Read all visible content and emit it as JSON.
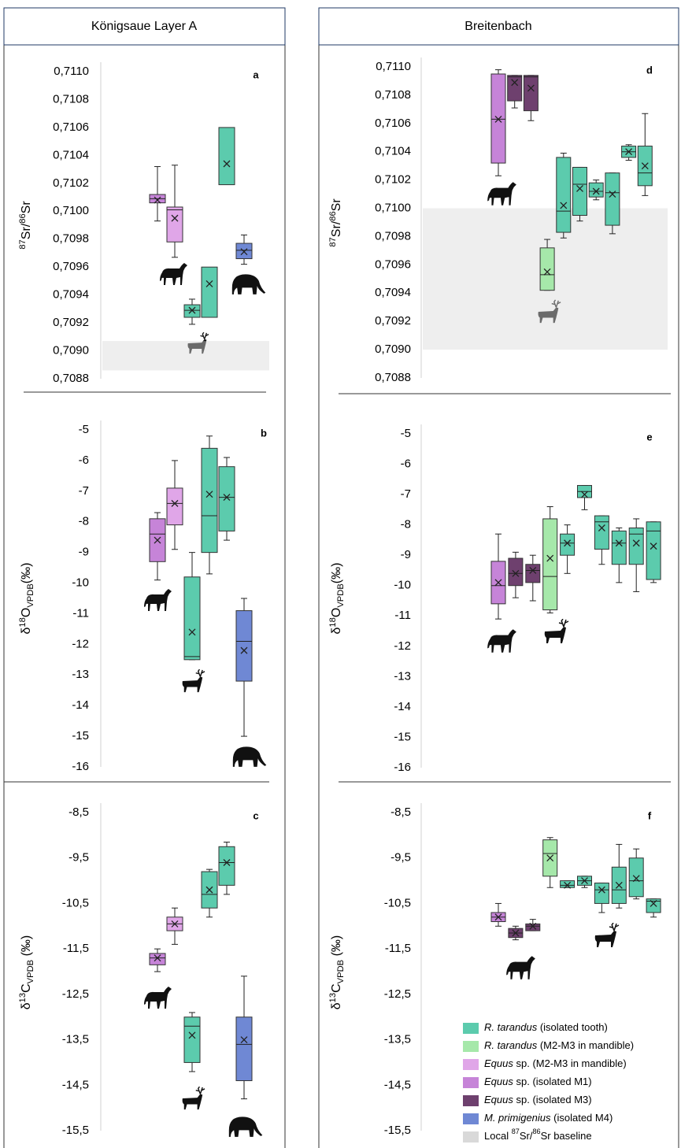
{
  "columns": [
    {
      "header": "Königsaue Layer A"
    },
    {
      "header": "Breitenbach"
    }
  ],
  "legend": [
    {
      "label": [
        {
          "text": "R. tarandus",
          "style": "italic"
        },
        {
          "text": " (isolated tooth)",
          "style": "normal"
        }
      ],
      "color": "#5ccbad"
    },
    {
      "label": [
        {
          "text": "R. tarandus",
          "style": "italic"
        },
        {
          "text": " (M2-M3 in mandible)",
          "style": "normal"
        }
      ],
      "color": "#a6e8aa"
    },
    {
      "label": [
        {
          "text": "Equus",
          "style": "italic"
        },
        {
          "text": " sp. (M2-M3 in mandible)",
          "style": "normal"
        }
      ],
      "color": "#e0a6e8"
    },
    {
      "label": [
        {
          "text": "Equus",
          "style": "italic"
        },
        {
          "text": " sp. (isolated M1)",
          "style": "normal"
        }
      ],
      "color": "#c684d8"
    },
    {
      "label": [
        {
          "text": "Equus",
          "style": "italic"
        },
        {
          "text": " sp. (isolated M3)",
          "style": "normal"
        }
      ],
      "color": "#6e406e"
    },
    {
      "label": [
        {
          "text": "M. primigenius",
          "style": "italic"
        },
        {
          "text": " (isolated M4)",
          "style": "normal"
        }
      ],
      "color": "#6f88d4"
    },
    {
      "label": [
        {
          "text": "Local ",
          "style": "normal"
        },
        {
          "text": "87",
          "style": "sup"
        },
        {
          "text": "Sr/",
          "style": "normal"
        },
        {
          "text": "86",
          "style": "sup"
        },
        {
          "text": "Sr baseline",
          "style": "normal"
        }
      ],
      "color": "#d9d9d9"
    }
  ],
  "chart_data": [
    {
      "type": "box",
      "panel_label": "a",
      "ylabel": [
        {
          "text": "87",
          "style": "sup"
        },
        {
          "text": "Sr/",
          "style": "normal"
        },
        {
          "text": "86",
          "style": "sup"
        },
        {
          "text": "Sr",
          "style": "normal"
        }
      ],
      "ylim": [
        0.7088,
        0.711
      ],
      "yticks": [
        {
          "value": 0.711,
          "label": "0,7110"
        },
        {
          "value": 0.7108,
          "label": "0,7108"
        },
        {
          "value": 0.7106,
          "label": "0,7106"
        },
        {
          "value": 0.7104,
          "label": "0,7104"
        },
        {
          "value": 0.7102,
          "label": "0,7102"
        },
        {
          "value": 0.71,
          "label": "0,7100"
        },
        {
          "value": 0.7098,
          "label": "0,7098"
        },
        {
          "value": 0.7096,
          "label": "0,7096"
        },
        {
          "value": 0.7094,
          "label": "0,7094"
        },
        {
          "value": 0.7092,
          "label": "0,7092"
        },
        {
          "value": 0.709,
          "label": "0,7090"
        },
        {
          "value": 0.7088,
          "label": "0,7088"
        }
      ],
      "band": {
        "group": 6,
        "range": [
          0.70886,
          0.70907
        ]
      },
      "boxes": [
        {
          "group": 3,
          "whisker_low": 0.70993,
          "q1": 0.71006,
          "median": 0.71009,
          "q3": 0.71012,
          "whisker_high": 0.71032,
          "mean": 0.71008
        },
        {
          "group": 2,
          "whisker_low": 0.70967,
          "q1": 0.70978,
          "median": 0.71001,
          "q3": 0.71003,
          "whisker_high": 0.71033,
          "mean": 0.70995
        },
        {
          "group": 0,
          "whisker_low": 0.70919,
          "q1": 0.70924,
          "median": 0.70929,
          "q3": 0.70933,
          "whisker_high": 0.70937,
          "mean": 0.70929
        },
        {
          "group": 0,
          "q1": 0.70924,
          "q3": 0.7096,
          "mean": 0.70948
        },
        {
          "group": 0,
          "q1": 0.71019,
          "q3": 0.7106,
          "mean": 0.71034
        },
        {
          "group": 5,
          "whisker_low": 0.70962,
          "q1": 0.70966,
          "median": 0.70972,
          "q3": 0.70977,
          "whisker_high": 0.70983,
          "mean": 0.70971
        }
      ]
    },
    {
      "type": "box",
      "panel_label": "b",
      "ylabel": [
        {
          "text": "δ",
          "style": "normal"
        },
        {
          "text": "18",
          "style": "sup"
        },
        {
          "text": "O",
          "style": "normal"
        },
        {
          "text": "VPDB",
          "style": "sub"
        },
        {
          "text": "(‰)",
          "style": "normal"
        }
      ],
      "ylim": [
        -16,
        -5
      ],
      "yticks": [
        -5,
        -6,
        -7,
        -8,
        -9,
        -10,
        -11,
        -12,
        -13,
        -14,
        -15,
        -16
      ],
      "boxes": [
        {
          "group": 3,
          "whisker_low": -9.9,
          "q1": -9.3,
          "median": -8.4,
          "q3": -7.9,
          "whisker_high": -7.7,
          "mean": -8.6
        },
        {
          "group": 2,
          "whisker_low": -8.9,
          "q1": -8.1,
          "median": -7.4,
          "q3": -6.9,
          "whisker_high": -6.0,
          "mean": -7.4
        },
        {
          "group": 0,
          "whisker_low": -12.5,
          "q1": -12.5,
          "median": -12.4,
          "q3": -9.8,
          "whisker_high": -9.0,
          "mean": -11.6
        },
        {
          "group": 0,
          "whisker_low": -9.7,
          "q1": -9.0,
          "median": -7.8,
          "q3": -5.6,
          "whisker_high": -5.2,
          "mean": -7.1
        },
        {
          "group": 0,
          "whisker_low": -8.6,
          "q1": -8.3,
          "median": -7.2,
          "q3": -6.2,
          "whisker_high": -5.9,
          "mean": -7.2
        },
        {
          "group": 5,
          "whisker_low": -15.0,
          "q1": -13.2,
          "median": -11.9,
          "q3": -10.9,
          "whisker_high": -10.5,
          "mean": -12.2
        }
      ]
    },
    {
      "type": "box",
      "panel_label": "c",
      "ylabel": [
        {
          "text": "δ",
          "style": "normal"
        },
        {
          "text": "13",
          "style": "sup"
        },
        {
          "text": "C",
          "style": "normal"
        },
        {
          "text": "VPDB",
          "style": "sub"
        },
        {
          "text": " (‰)",
          "style": "normal"
        }
      ],
      "ylim": [
        -15.5,
        -8.5
      ],
      "yticks": [
        {
          "value": -8.5,
          "label": "-8,5"
        },
        {
          "value": -9.5,
          "label": "-9,5"
        },
        {
          "value": -10.5,
          "label": "-10,5"
        },
        {
          "value": -11.5,
          "label": "-11,5"
        },
        {
          "value": -12.5,
          "label": "-12,5"
        },
        {
          "value": -13.5,
          "label": "-13,5"
        },
        {
          "value": -14.5,
          "label": "-14,5"
        },
        {
          "value": -15.5,
          "label": "-15,5"
        }
      ],
      "boxes": [
        {
          "group": 3,
          "whisker_low": -12.0,
          "q1": -11.85,
          "median": -11.7,
          "q3": -11.6,
          "whisker_high": -11.5,
          "mean": -11.7
        },
        {
          "group": 2,
          "whisker_low": -11.4,
          "q1": -11.1,
          "median": -10.95,
          "q3": -10.8,
          "whisker_high": -10.6,
          "mean": -10.95
        },
        {
          "group": 0,
          "whisker_low": -14.2,
          "q1": -14.0,
          "median": -13.2,
          "q3": -13.0,
          "whisker_high": -12.9,
          "mean": -13.4
        },
        {
          "group": 0,
          "whisker_low": -10.8,
          "q1": -10.6,
          "median": -10.3,
          "q3": -9.8,
          "whisker_high": -9.75,
          "mean": -10.2
        },
        {
          "group": 0,
          "whisker_low": -10.3,
          "q1": -10.1,
          "median": -9.6,
          "q3": -9.25,
          "whisker_high": -9.15,
          "mean": -9.6
        },
        {
          "group": 5,
          "whisker_low": -14.8,
          "q1": -14.4,
          "median": -13.6,
          "q3": -13.0,
          "whisker_high": -12.1,
          "mean": -13.5
        }
      ]
    },
    {
      "type": "box",
      "panel_label": "d",
      "ylabel": [
        {
          "text": "87",
          "style": "sup"
        },
        {
          "text": "Sr/",
          "style": "normal"
        },
        {
          "text": "86",
          "style": "sup"
        },
        {
          "text": "Sr",
          "style": "normal"
        }
      ],
      "ylim": [
        0.7088,
        0.711
      ],
      "yticks": [
        {
          "value": 0.711,
          "label": "0,7110"
        },
        {
          "value": 0.7108,
          "label": "0,7108"
        },
        {
          "value": 0.7106,
          "label": "0,7106"
        },
        {
          "value": 0.7104,
          "label": "0,7104"
        },
        {
          "value": 0.7102,
          "label": "0,7102"
        },
        {
          "value": 0.71,
          "label": "0,7100"
        },
        {
          "value": 0.7098,
          "label": "0,7098"
        },
        {
          "value": 0.7096,
          "label": "0,7096"
        },
        {
          "value": 0.7094,
          "label": "0,7094"
        },
        {
          "value": 0.7092,
          "label": "0,7092"
        },
        {
          "value": 0.709,
          "label": "0,7090"
        },
        {
          "value": 0.7088,
          "label": "0,7088"
        }
      ],
      "band": {
        "group": 6,
        "range": [
          0.709,
          0.71
        ]
      },
      "boxes": [
        {
          "group": 3,
          "whisker_low": 0.71023,
          "q1": 0.71032,
          "median": 0.71063,
          "q3": 0.71095,
          "whisker_high": 0.71098,
          "mean": 0.71063
        },
        {
          "group": 4,
          "whisker_low": 0.71071,
          "q1": 0.71076,
          "median": 0.71093,
          "q3": 0.71094,
          "whisker_high": 0.71094,
          "mean": 0.71089
        },
        {
          "group": 4,
          "whisker_low": 0.71062,
          "q1": 0.71069,
          "median": 0.71093,
          "q3": 0.71094,
          "whisker_high": 0.71094,
          "mean": 0.71085
        },
        {
          "group": 1,
          "whisker_low": 0.70942,
          "q1": 0.70942,
          "median": 0.70953,
          "q3": 0.70972,
          "whisker_high": 0.70978,
          "mean": 0.70955
        },
        {
          "group": 0,
          "whisker_low": 0.70979,
          "q1": 0.70983,
          "median": 0.70998,
          "q3": 0.71036,
          "whisker_high": 0.71039,
          "mean": 0.71002
        },
        {
          "group": 0,
          "whisker_low": 0.70991,
          "q1": 0.70995,
          "median": 0.71017,
          "q3": 0.71029,
          "whisker_high": 0.71029,
          "mean": 0.71014
        },
        {
          "group": 0,
          "whisker_low": 0.71006,
          "q1": 0.71008,
          "median": 0.71012,
          "q3": 0.71018,
          "whisker_high": 0.7102,
          "mean": 0.71012
        },
        {
          "group": 0,
          "whisker_low": 0.70982,
          "q1": 0.70988,
          "median": 0.71011,
          "q3": 0.71025,
          "whisker_high": 0.71025,
          "mean": 0.7101
        },
        {
          "group": 0,
          "whisker_low": 0.71034,
          "q1": 0.71036,
          "median": 0.7104,
          "q3": 0.71044,
          "whisker_high": 0.71045,
          "mean": 0.7104
        },
        {
          "group": 0,
          "whisker_low": 0.71009,
          "q1": 0.71016,
          "median": 0.71025,
          "q3": 0.71044,
          "whisker_high": 0.71067,
          "mean": 0.7103
        }
      ]
    },
    {
      "type": "box",
      "panel_label": "e",
      "ylabel": [
        {
          "text": "δ",
          "style": "normal"
        },
        {
          "text": "18",
          "style": "sup"
        },
        {
          "text": "O",
          "style": "normal"
        },
        {
          "text": "VPDB",
          "style": "sub"
        },
        {
          "text": "(‰)",
          "style": "normal"
        }
      ],
      "ylim": [
        -16,
        -5
      ],
      "yticks": [
        -5,
        -6,
        -7,
        -8,
        -9,
        -10,
        -11,
        -12,
        -13,
        -14,
        -15,
        -16
      ],
      "boxes": [
        {
          "group": 3,
          "whisker_low": -11.1,
          "q1": -10.6,
          "median": -10.0,
          "q3": -9.2,
          "whisker_high": -8.3,
          "mean": -9.9
        },
        {
          "group": 4,
          "whisker_low": -10.4,
          "q1": -10.0,
          "median": -9.6,
          "q3": -9.1,
          "whisker_high": -8.9,
          "mean": -9.6
        },
        {
          "group": 4,
          "whisker_low": -10.5,
          "q1": -9.9,
          "median": -9.5,
          "q3": -9.3,
          "whisker_high": -9.0,
          "mean": -9.5
        },
        {
          "group": 1,
          "whisker_low": -10.9,
          "q1": -10.8,
          "median": -9.7,
          "q3": -7.8,
          "whisker_high": -7.4,
          "mean": -9.1
        },
        {
          "group": 0,
          "whisker_low": -9.6,
          "q1": -9.0,
          "median": -8.6,
          "q3": -8.3,
          "whisker_high": -8.0,
          "mean": -8.6
        },
        {
          "group": 0,
          "whisker_low": -7.5,
          "q1": -7.1,
          "median": -6.9,
          "q3": -6.7,
          "whisker_high": -6.7,
          "mean": -7.0
        },
        {
          "group": 0,
          "whisker_low": -9.3,
          "q1": -8.8,
          "median": -7.9,
          "q3": -7.7,
          "whisker_high": -7.7,
          "mean": -8.1
        },
        {
          "group": 0,
          "whisker_low": -9.9,
          "q1": -9.3,
          "median": -8.6,
          "q3": -8.2,
          "whisker_high": -8.1,
          "mean": -8.6
        },
        {
          "group": 0,
          "whisker_low": -10.2,
          "q1": -9.3,
          "median": -8.3,
          "q3": -8.1,
          "whisker_high": -7.8,
          "mean": -8.6
        },
        {
          "group": 0,
          "whisker_low": -9.9,
          "q1": -9.8,
          "median": -8.2,
          "q3": -7.9,
          "whisker_high": -7.9,
          "mean": -8.7
        }
      ]
    },
    {
      "type": "box",
      "panel_label": "f",
      "ylabel": [
        {
          "text": "δ",
          "style": "normal"
        },
        {
          "text": "13",
          "style": "sup"
        },
        {
          "text": "C",
          "style": "normal"
        },
        {
          "text": "VPDB",
          "style": "sub"
        },
        {
          "text": " (‰)",
          "style": "normal"
        }
      ],
      "ylim": [
        -15.5,
        -8.5
      ],
      "yticks": [
        {
          "value": -8.5,
          "label": "-8,5"
        },
        {
          "value": -9.5,
          "label": "-9,5"
        },
        {
          "value": -10.5,
          "label": "-10,5"
        },
        {
          "value": -11.5,
          "label": "-11,5"
        },
        {
          "value": -12.5,
          "label": "-12,5"
        },
        {
          "value": -13.5,
          "label": "-13,5"
        },
        {
          "value": -14.5,
          "label": "-14,5"
        },
        {
          "value": -15.5,
          "label": "-15,5"
        }
      ],
      "legend_position": "bottom-right",
      "boxes": [
        {
          "group": 3,
          "whisker_low": -11.0,
          "q1": -10.9,
          "median": -10.8,
          "q3": -10.7,
          "whisker_high": -10.5,
          "mean": -10.8
        },
        {
          "group": 4,
          "whisker_low": -11.3,
          "q1": -11.25,
          "median": -11.15,
          "q3": -11.05,
          "whisker_high": -11.0,
          "mean": -11.15
        },
        {
          "group": 4,
          "whisker_low": -11.1,
          "q1": -11.1,
          "median": -11.0,
          "q3": -10.95,
          "whisker_high": -10.85,
          "mean": -11.0
        },
        {
          "group": 1,
          "whisker_low": -10.15,
          "q1": -9.9,
          "median": -9.4,
          "q3": -9.1,
          "whisker_high": -9.05,
          "mean": -9.5
        },
        {
          "group": 0,
          "whisker_low": -10.15,
          "q1": -10.15,
          "median": -10.1,
          "q3": -10.0,
          "whisker_high": -10.0,
          "mean": -10.1
        },
        {
          "group": 0,
          "whisker_low": -10.15,
          "q1": -10.1,
          "median": -10.0,
          "q3": -9.9,
          "whisker_high": -9.9,
          "mean": -10.0
        },
        {
          "group": 0,
          "whisker_low": -10.7,
          "q1": -10.5,
          "median": -10.2,
          "q3": -10.05,
          "whisker_high": -10.05,
          "mean": -10.2
        },
        {
          "group": 0,
          "whisker_low": -10.6,
          "q1": -10.5,
          "median": -10.2,
          "q3": -9.7,
          "whisker_high": -9.2,
          "mean": -10.1
        },
        {
          "group": 0,
          "whisker_low": -10.4,
          "q1": -10.35,
          "median": -10.0,
          "q3": -9.5,
          "whisker_high": -9.3,
          "mean": -9.95
        },
        {
          "group": 0,
          "whisker_low": -10.8,
          "q1": -10.7,
          "median": -10.45,
          "q3": -10.4,
          "whisker_high": -10.4,
          "mean": -10.5
        }
      ]
    }
  ]
}
